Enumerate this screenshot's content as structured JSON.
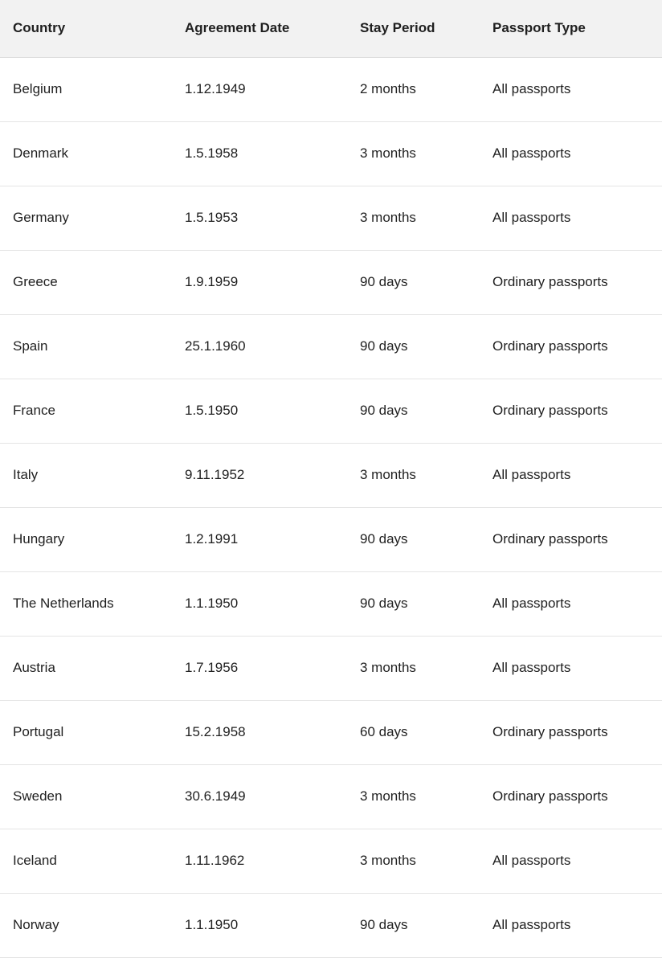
{
  "table": {
    "columns": [
      {
        "key": "country",
        "label": "Country"
      },
      {
        "key": "agreement-date",
        "label": "Agreement Date"
      },
      {
        "key": "stay-period",
        "label": "Stay Period"
      },
      {
        "key": "passport-type",
        "label": "Passport Type"
      }
    ],
    "rows": [
      [
        "Belgium",
        "1.12.1949",
        "2 months",
        "All passports"
      ],
      [
        "Denmark",
        "1.5.1958",
        "3 months",
        "All passports"
      ],
      [
        "Germany",
        "1.5.1953",
        "3 months",
        "All passports"
      ],
      [
        "Greece",
        "1.9.1959",
        "90 days",
        "Ordinary passports"
      ],
      [
        "Spain",
        "25.1.1960",
        "90 days",
        "Ordinary passports"
      ],
      [
        "France",
        "1.5.1950",
        "90 days",
        "Ordinary passports"
      ],
      [
        "Italy",
        "9.11.1952",
        "3 months",
        "All passports"
      ],
      [
        "Hungary",
        "1.2.1991",
        "90 days",
        "Ordinary passports"
      ],
      [
        "The Netherlands",
        "1.1.1950",
        "90 days",
        "All passports"
      ],
      [
        "Austria",
        "1.7.1956",
        "3 months",
        "All passports"
      ],
      [
        "Portugal",
        "15.2.1958",
        "60 days",
        "Ordinary passports"
      ],
      [
        "Sweden",
        "30.6.1949",
        "3 months",
        "Ordinary passports"
      ],
      [
        "Iceland",
        "1.11.1962",
        "3 months",
        "All passports"
      ],
      [
        "Norway",
        "1.1.1950",
        "90 days",
        "All passports"
      ]
    ],
    "colors": {
      "header_bg": "#f2f2f2",
      "row_border": "#e4e4e4",
      "text": "#1f1f1f",
      "background": "#ffffff"
    }
  }
}
